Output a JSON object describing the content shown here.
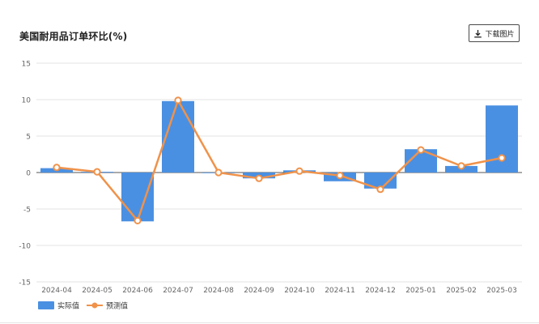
{
  "header": {
    "title": "美国耐用品订单环比(%)",
    "download_label": "下载图片",
    "download_icon": "download-icon"
  },
  "chart_data": {
    "type": "bar",
    "categories": [
      "2024-04",
      "2024-05",
      "2024-06",
      "2024-07",
      "2024-08",
      "2024-09",
      "2024-10",
      "2024-11",
      "2024-12",
      "2025-01",
      "2025-02",
      "2025-03"
    ],
    "series": [
      {
        "name": "实际值",
        "type": "bar",
        "color": "#4a90e2",
        "values": [
          0.6,
          0.1,
          -6.7,
          9.8,
          0.0,
          -0.8,
          0.3,
          -1.2,
          -2.2,
          3.2,
          0.9,
          9.2
        ]
      },
      {
        "name": "预测值",
        "type": "line",
        "color": "#f0924a",
        "values": [
          0.7,
          0.1,
          -6.6,
          9.9,
          0.0,
          -0.8,
          0.2,
          -0.4,
          -2.3,
          3.1,
          0.9,
          2.0
        ]
      }
    ],
    "yticks": [
      15,
      10,
      5,
      0,
      -5,
      -10,
      -15
    ],
    "ylim": [
      -15,
      15
    ],
    "grid": true,
    "legend": "bottom-left"
  }
}
